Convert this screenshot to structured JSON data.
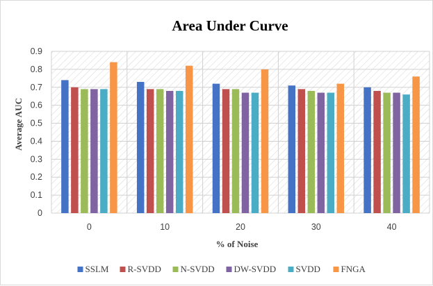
{
  "chart_data": {
    "type": "bar",
    "title": "Area Under Curve",
    "xlabel": "% of Noise",
    "ylabel": "Average AUC",
    "categories": [
      "0",
      "10",
      "20",
      "30",
      "40"
    ],
    "ylim": [
      0,
      0.9
    ],
    "yticks": [
      "0",
      "0.1",
      "0.2",
      "0.3",
      "0.4",
      "0.5",
      "0.6",
      "0.7",
      "0.8",
      "0.9"
    ],
    "grid": true,
    "legend_position": "bottom",
    "series": [
      {
        "name": "SSLM",
        "color": "#4472C4",
        "values": [
          0.74,
          0.73,
          0.72,
          0.71,
          0.7
        ]
      },
      {
        "name": "R-SVDD",
        "color": "#C0504D",
        "values": [
          0.7,
          0.69,
          0.69,
          0.69,
          0.68
        ]
      },
      {
        "name": "N-SVDD",
        "color": "#9BBB59",
        "values": [
          0.69,
          0.69,
          0.69,
          0.68,
          0.67
        ]
      },
      {
        "name": "DW-SVDD",
        "color": "#8064A2",
        "values": [
          0.69,
          0.68,
          0.67,
          0.67,
          0.67
        ]
      },
      {
        "name": "SVDD",
        "color": "#4BACC6",
        "values": [
          0.69,
          0.68,
          0.67,
          0.67,
          0.66
        ]
      },
      {
        "name": "FNGA",
        "color": "#F79646",
        "values": [
          0.84,
          0.82,
          0.8,
          0.72,
          0.76
        ]
      }
    ]
  }
}
